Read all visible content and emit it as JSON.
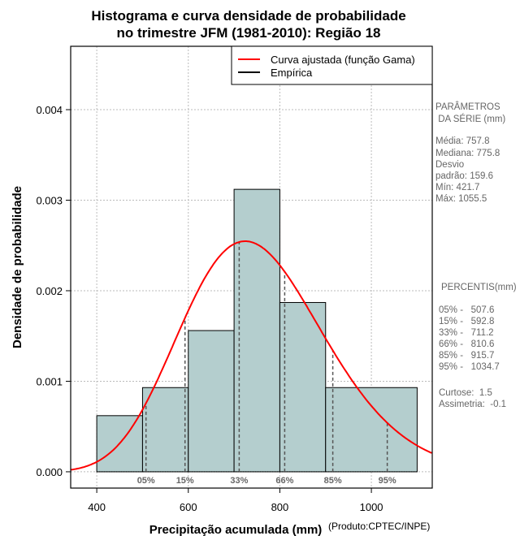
{
  "chart_data": {
    "type": "bar",
    "title": [
      "Histograma e curva densidade de probabilidade",
      "no trimestre JFM (1981-2010): Região 18"
    ],
    "xlabel": "Precipitação acumulada (mm)",
    "credit": "(Produto:CPTEC/INPE)",
    "ylabel": "Densidade de probabilidade",
    "xlim": [
      343,
      1133
    ],
    "ylim": [
      -0.00018,
      0.0047
    ],
    "xticks": [
      400,
      600,
      800,
      1000
    ],
    "yticks": [
      0.0,
      0.001,
      0.002,
      0.003,
      0.004
    ],
    "ytick_labels": [
      "0.000",
      "0.001",
      "0.002",
      "0.003",
      "0.004"
    ],
    "bins": [
      {
        "from": 400,
        "to": 500,
        "density": 0.00062
      },
      {
        "from": 500,
        "to": 600,
        "density": 0.00093
      },
      {
        "from": 600,
        "to": 700,
        "density": 0.00156
      },
      {
        "from": 700,
        "to": 800,
        "density": 0.00312
      },
      {
        "from": 800,
        "to": 900,
        "density": 0.00187
      },
      {
        "from": 900,
        "to": 1100,
        "density": 0.00093
      }
    ],
    "curve": {
      "name": "Curva ajustada (função Gama)",
      "mean": 757.8,
      "sd": 159.6,
      "color": "#ff0000"
    },
    "legend": [
      "Curva ajustada (função Gama)",
      "Empírica"
    ],
    "legend_position": "top-right",
    "percentiles": [
      {
        "label": "05%",
        "value": 507.6
      },
      {
        "label": "15%",
        "value": 592.8
      },
      {
        "label": "33%",
        "value": 711.2
      },
      {
        "label": "66%",
        "value": 810.6
      },
      {
        "label": "85%",
        "value": 915.7
      },
      {
        "label": "95%",
        "value": 1034.7
      }
    ],
    "bar_color": "#b4cece"
  },
  "side": {
    "params_title": [
      "PARÂMETROS",
      " DA SÉRIE (mm)"
    ],
    "params": [
      "Média:  757.8",
      "Mediana:  775.8",
      "Desvio",
      "padrão:  159.6",
      "Mín:  421.7",
      "Máx:  1055.5"
    ],
    "perc_title": "PERCENTIS(mm)",
    "perc": [
      "05% -   507.6",
      "15% -   592.8",
      "33% -   711.2",
      "66% -   810.6",
      "85% -   915.7",
      "95% -   1034.7"
    ],
    "stats": [
      "Curtose:  1.5",
      "Assimetria:  -0.1"
    ]
  }
}
